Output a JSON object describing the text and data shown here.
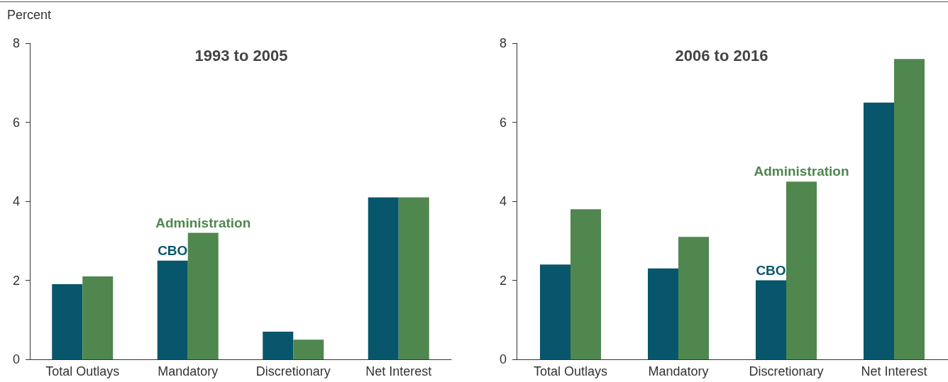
{
  "chart_data": [
    {
      "type": "bar",
      "title": "1993 to 2005",
      "ylabel": "Percent",
      "categories": [
        "Total Outlays",
        "Mandatory",
        "Discretionary",
        "Net Interest"
      ],
      "series": [
        {
          "color": "#08566b",
          "values": [
            1.9,
            2.5,
            0.7,
            4.1
          ]
        },
        {
          "color": "#4f874f",
          "values": [
            2.1,
            3.2,
            0.5,
            4.1
          ]
        }
      ],
      "annotations": [
        {
          "text": "CBO",
          "x": "Mandatory",
          "y": 2.5
        },
        {
          "text": "Administration",
          "x": "Mandatory",
          "y": 3.2
        }
      ],
      "ylim": [
        0,
        8
      ],
      "yticks": [
        0,
        2,
        4,
        6,
        8
      ],
      "grid": false
    },
    {
      "type": "bar",
      "title": "2006 to 2016",
      "categories": [
        "Total Outlays",
        "Mandatory",
        "Discretionary",
        "Net Interest"
      ],
      "series": [
        {
          "color": "#08566b",
          "values": [
            2.4,
            2.3,
            2.0,
            6.5
          ]
        },
        {
          "color": "#4f874f",
          "values": [
            3.8,
            3.1,
            4.5,
            7.6
          ]
        }
      ],
      "annotations": [
        {
          "text": "CBO",
          "x": "Discretionary",
          "y": 2.0
        },
        {
          "text": "Administration",
          "x": "Discretionary",
          "y": 4.5
        }
      ],
      "ylim": [
        0,
        8
      ],
      "yticks": [
        0,
        2,
        4,
        6,
        8
      ],
      "grid": false
    }
  ]
}
